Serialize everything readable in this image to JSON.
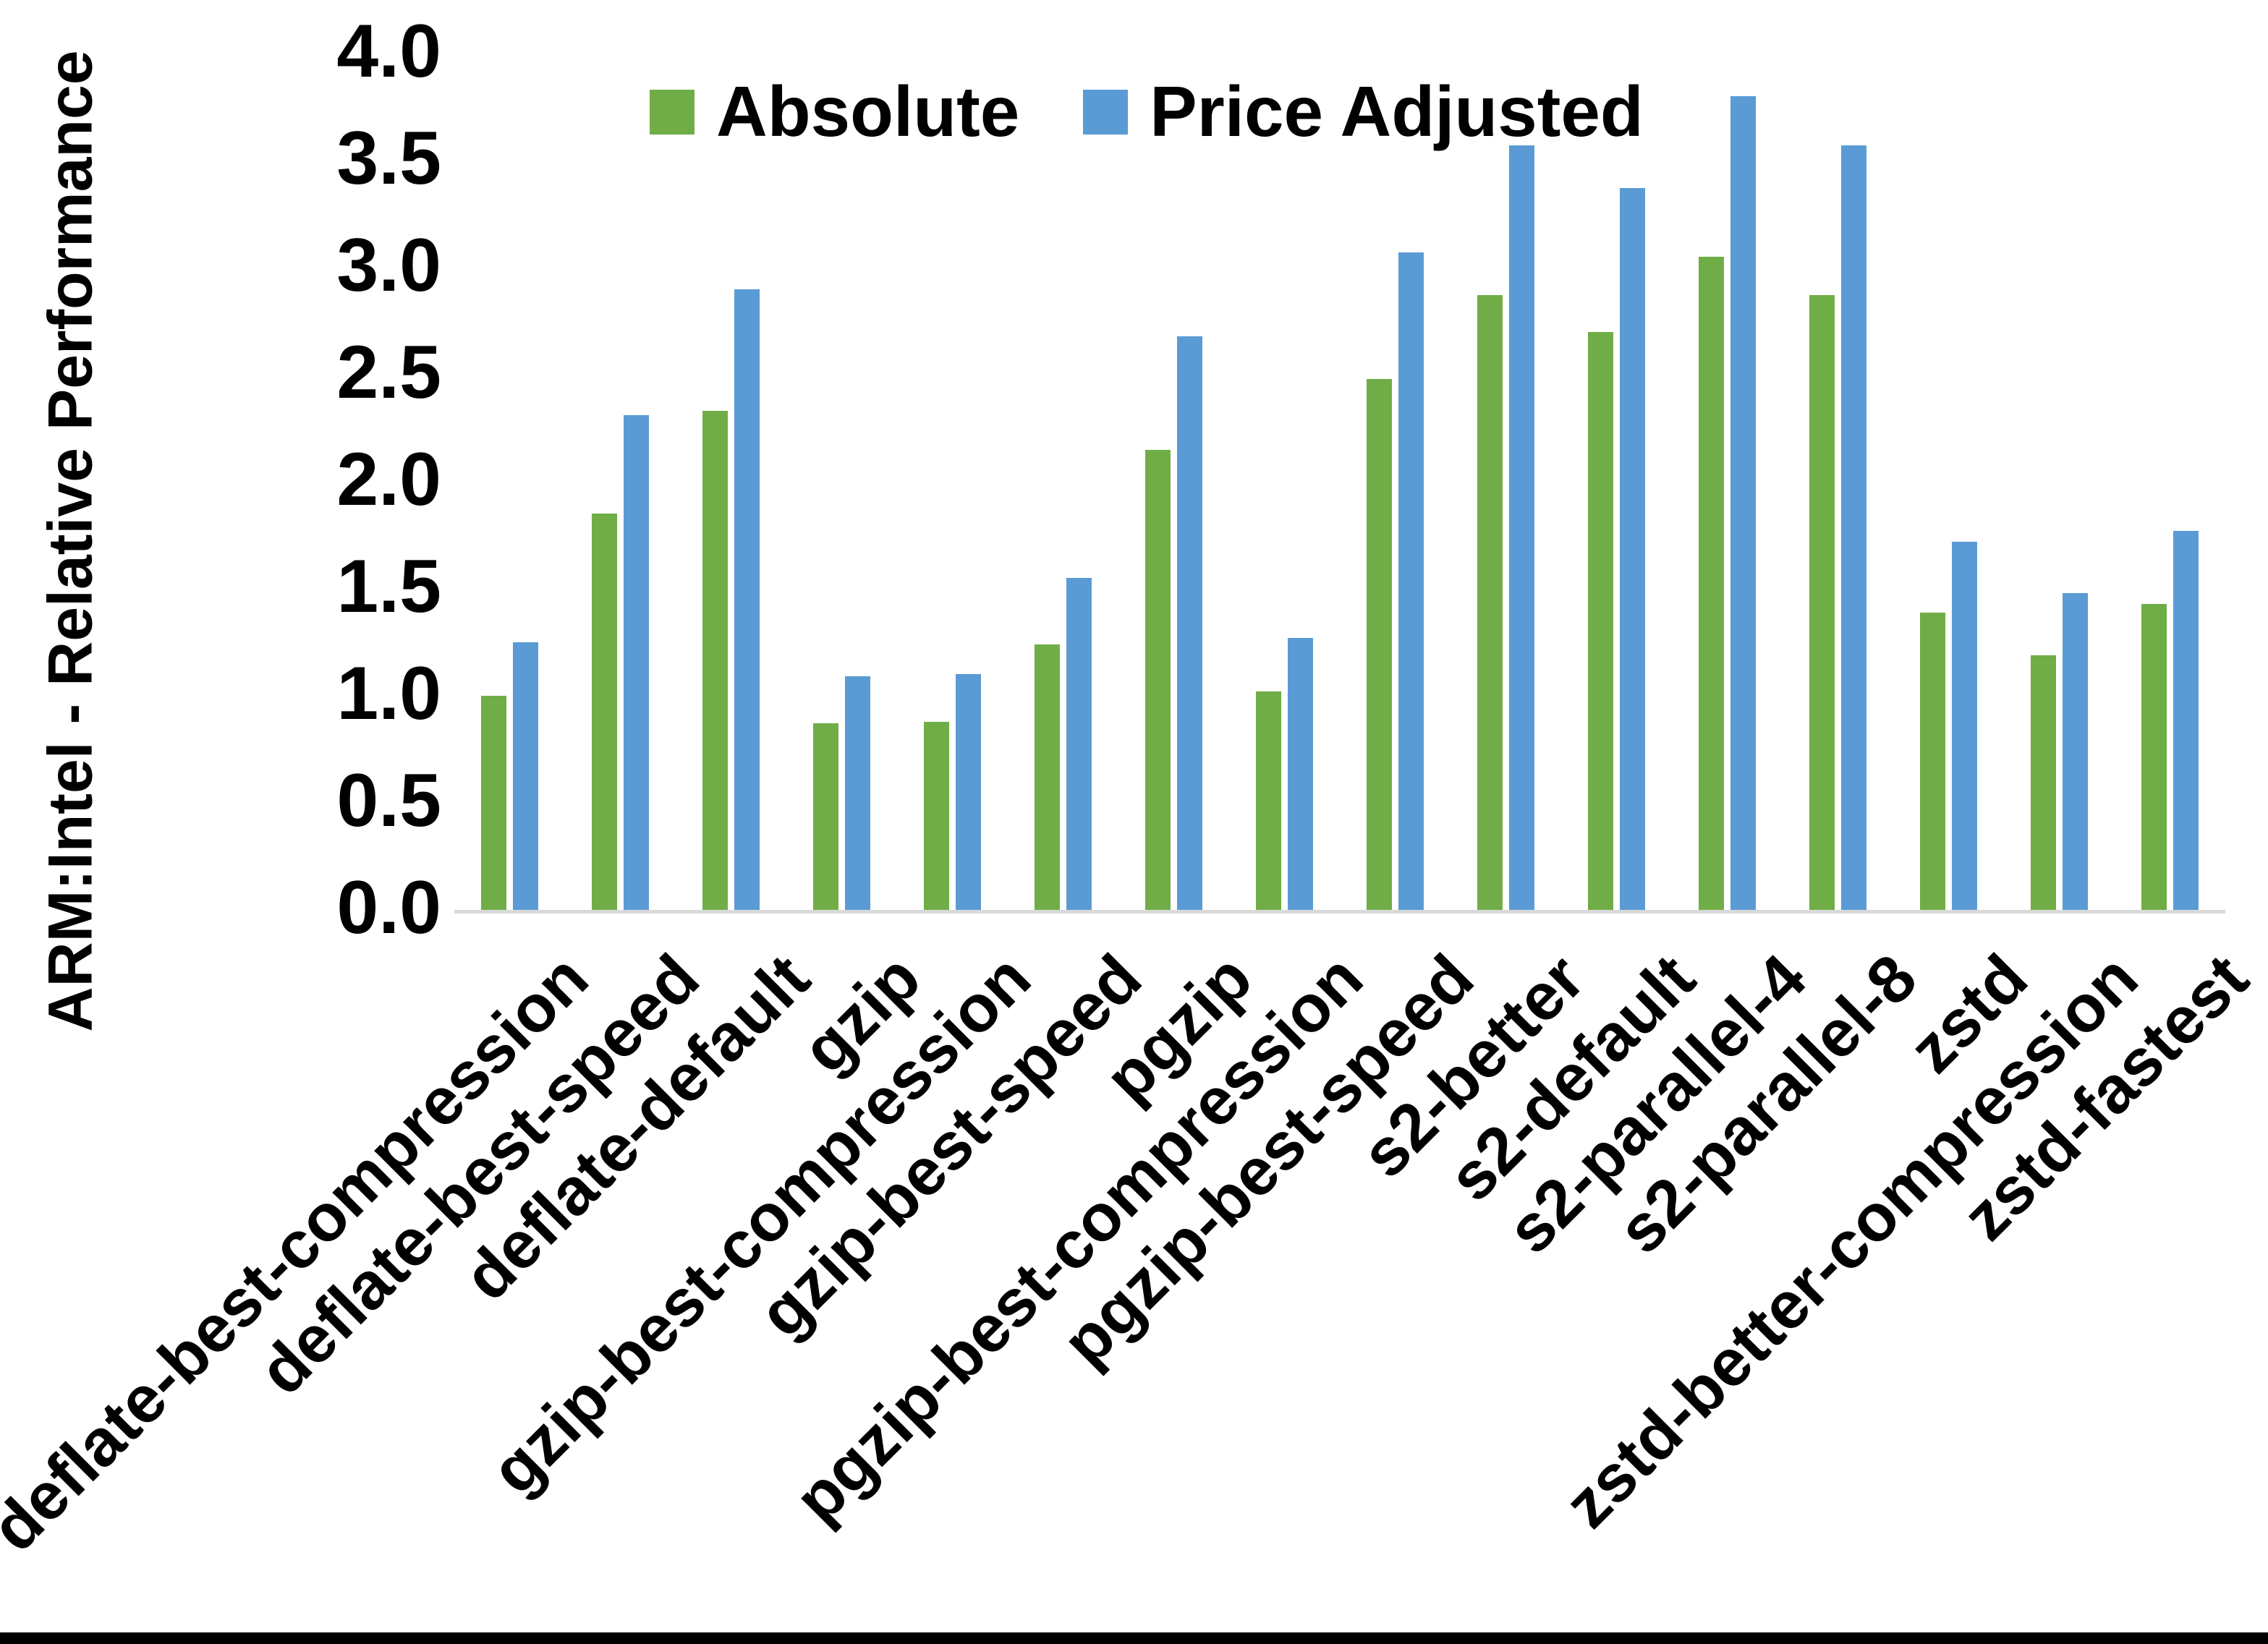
{
  "chart_data": {
    "type": "bar",
    "title": "",
    "ylabel": "ARM:Intel - Relative Performance",
    "xlabel": "",
    "ylim": [
      0.0,
      4.0
    ],
    "ytick_step": 0.5,
    "ytick_labels": [
      "4.0",
      "3.5",
      "3.0",
      "2.5",
      "2.0",
      "1.5",
      "1.0",
      "0.5",
      "0.0"
    ],
    "grid": false,
    "legend_position": "top-center",
    "categories": [
      "deflate-best-compression",
      "deflate-best-speed",
      "deflate-default",
      "gzip",
      "gzip-best-compression",
      "gzip-best-speed",
      "pgzip",
      "pgzip-best-compression",
      "pgzip-best-speed",
      "s2-better",
      "s2-default",
      "s2-parallel-4",
      "s2-parallel-8",
      "zstd",
      "zstd-better-compression",
      "zstd-fastest"
    ],
    "series": [
      {
        "name": "Absolute",
        "color": "#70AD47",
        "values": [
          1.0,
          1.85,
          2.33,
          0.87,
          0.88,
          1.24,
          2.15,
          1.02,
          2.48,
          2.87,
          2.7,
          3.05,
          2.87,
          1.39,
          1.19,
          1.43
        ]
      },
      {
        "name": "Price Adjusted",
        "color": "#5B9BD5",
        "values": [
          1.25,
          2.31,
          2.9,
          1.09,
          1.1,
          1.55,
          2.68,
          1.27,
          3.07,
          3.57,
          3.37,
          3.8,
          3.57,
          1.72,
          1.48,
          1.77
        ]
      }
    ]
  },
  "colors": {
    "background": "#FFFFFF",
    "text": "#000000",
    "axis_line": "#D9D9D9",
    "bottom_border": "#000000",
    "series_absolute": "#70AD47",
    "series_price_adjusted": "#5B9BD5"
  }
}
